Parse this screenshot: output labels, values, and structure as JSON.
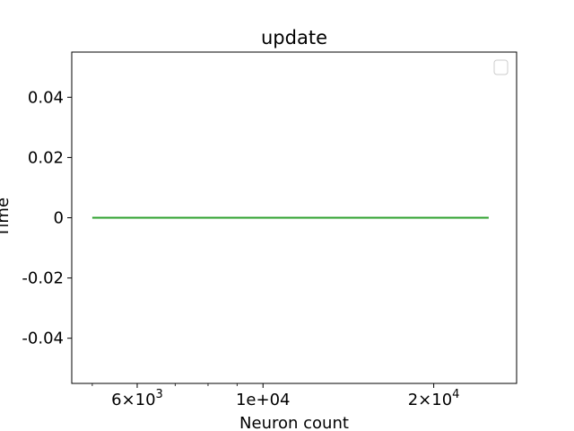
{
  "chart_data": {
    "type": "line",
    "title": "update",
    "xlabel": "Neuron count",
    "ylabel": "Time",
    "x_scale": "log",
    "xlim": [
      4600,
      28000
    ],
    "ylim": [
      -0.055,
      0.055
    ],
    "x_major_ticks": [
      {
        "value": 6000,
        "mantissa": "6",
        "exponent": "3"
      },
      {
        "value": 10000,
        "label": "1e+04"
      },
      {
        "value": 20000,
        "mantissa": "2",
        "exponent": "4"
      }
    ],
    "x_minor_ticks": [
      5000,
      7000,
      8000,
      9000,
      30000
    ],
    "y_ticks": [
      {
        "value": 0.04,
        "label": "0.04"
      },
      {
        "value": 0.02,
        "label": "0.02"
      },
      {
        "value": 0,
        "label": "0"
      },
      {
        "value": -0.02,
        "label": "-0.02"
      },
      {
        "value": -0.04,
        "label": "-0.04"
      }
    ],
    "grid": false,
    "legend": "top-right",
    "series": [
      {
        "color": "#2ca02c",
        "x": [
          5000,
          25000
        ],
        "y": [
          0,
          0
        ]
      }
    ]
  }
}
